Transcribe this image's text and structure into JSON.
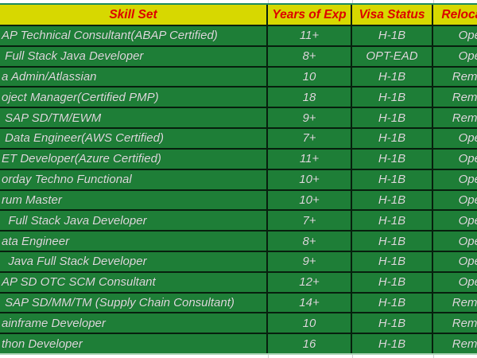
{
  "colors": {
    "header_bg": "#d7d800",
    "header_text": "#dd0000",
    "row_bg": "#1e7e37",
    "row_text": "#dcdcdc",
    "border_dark": "#07200e",
    "header_top_line": "#1c8a5e",
    "footer_line": "#a9d3b4",
    "gridline": "#cfcfcf",
    "outside_bg": "#ffffff"
  },
  "table": {
    "headers": {
      "skill": "Skill Set",
      "exp": "Years of Exp",
      "visa": "Visa Status",
      "reloc": "Relocation"
    },
    "rows": [
      {
        "skill": "AP Technical Consultant(ABAP Certified)",
        "exp": "11+",
        "visa": "H-1B",
        "reloc": "Open"
      },
      {
        "skill": " Full Stack Java Developer",
        "exp": "8+",
        "visa": "OPT-EAD",
        "reloc": "Open"
      },
      {
        "skill": "a Admin/Atlassian",
        "exp": "10",
        "visa": "H-1B",
        "reloc": "Remote"
      },
      {
        "skill": "oject Manager(Certified PMP)",
        "exp": "18",
        "visa": "H-1B",
        "reloc": "Remote"
      },
      {
        "skill": " SAP SD/TM/EWM",
        "exp": "9+",
        "visa": "H-1B",
        "reloc": "Remote"
      },
      {
        "skill": " Data Engineer(AWS Certified)",
        "exp": "7+",
        "visa": "H-1B",
        "reloc": "Open"
      },
      {
        "skill": "ET Developer(Azure Certified)",
        "exp": "11+",
        "visa": "H-1B",
        "reloc": "Open"
      },
      {
        "skill": "orday Techno Functional",
        "exp": "10+",
        "visa": "H-1B",
        "reloc": "Open"
      },
      {
        "skill": "rum Master",
        "exp": "10+",
        "visa": "H-1B",
        "reloc": "Open"
      },
      {
        "skill": "  Full Stack Java Developer",
        "exp": "7+",
        "visa": "H-1B",
        "reloc": "Open"
      },
      {
        "skill": "ata Engineer",
        "exp": "8+",
        "visa": "H-1B",
        "reloc": "Open"
      },
      {
        "skill": "  Java Full Stack Developer",
        "exp": "9+",
        "visa": "H-1B",
        "reloc": "Open"
      },
      {
        "skill": "AP SD OTC SCM Consultant",
        "exp": "12+",
        "visa": "H-1B",
        "reloc": "Open"
      },
      {
        "skill": " SAP SD/MM/TM (Supply Chain Consultant)",
        "exp": "14+",
        "visa": "H-1B",
        "reloc": "Remote"
      },
      {
        "skill": "ainframe Developer",
        "exp": "10",
        "visa": "H-1B",
        "reloc": "Remote"
      },
      {
        "skill": "thon Developer",
        "exp": "16",
        "visa": "H-1B",
        "reloc": "Remote"
      }
    ]
  }
}
